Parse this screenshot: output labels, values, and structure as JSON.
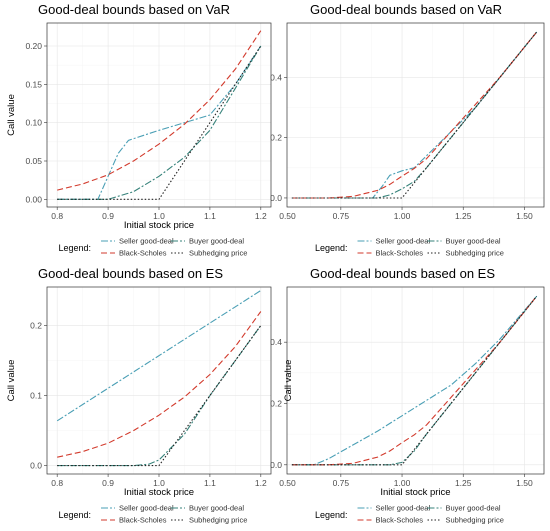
{
  "chart_data": [
    {
      "type": "line",
      "title": "Good-deal bounds based on VaR",
      "xlabel": "Initial stock price",
      "ylabel": "Call value",
      "xlim": [
        0.78,
        1.22
      ],
      "ylim": [
        -0.01,
        0.23
      ],
      "xticks": [
        0.8,
        0.9,
        1.0,
        1.1,
        1.2
      ],
      "xtick_labels": [
        "0.8",
        "0.9",
        "1.0",
        "1.1",
        "1.2"
      ],
      "yticks": [
        0,
        0.05,
        0.1,
        0.15,
        0.2
      ],
      "ytick_labels": [
        "0.00",
        "0.05",
        "0.10",
        "0.15",
        "0.20"
      ],
      "grid": true,
      "legend_placement": "bottom",
      "legend_title": "Legend:",
      "series": [
        {
          "name": "Seller good-deal",
          "color": "#4a9fb5",
          "dash": "7,2,2,2",
          "x": [
            0.8,
            0.85,
            0.88,
            0.9,
            0.92,
            0.94,
            1.0,
            1.05,
            1.1,
            1.15,
            1.2
          ],
          "y": [
            0.0,
            0.0,
            0.0,
            0.03,
            0.06,
            0.077,
            0.09,
            0.1,
            0.11,
            0.15,
            0.2
          ]
        },
        {
          "name": "Buyer good-deal",
          "color": "#36827a",
          "dash": "7,2,2,2",
          "x": [
            0.8,
            0.85,
            0.9,
            0.95,
            1.0,
            1.05,
            1.1,
            1.15,
            1.2
          ],
          "y": [
            0.0,
            0.0,
            0.0,
            0.01,
            0.03,
            0.055,
            0.09,
            0.145,
            0.2
          ]
        },
        {
          "name": "Black-Scholes",
          "color": "#d23a2c",
          "dash": "6,3",
          "x": [
            0.8,
            0.85,
            0.9,
            0.95,
            1.0,
            1.05,
            1.1,
            1.15,
            1.2
          ],
          "y": [
            0.012,
            0.02,
            0.032,
            0.05,
            0.072,
            0.098,
            0.13,
            0.17,
            0.22
          ]
        },
        {
          "name": "Subhedging price",
          "color": "#222222",
          "dash": "1.5,2",
          "x": [
            0.8,
            0.9,
            1.0,
            1.1,
            1.2
          ],
          "y": [
            0.0,
            0.0,
            0.0,
            0.1,
            0.2
          ]
        }
      ]
    },
    {
      "type": "line",
      "title": "Good-deal bounds based on VaR",
      "xlabel": "",
      "ylabel": "",
      "xlim": [
        0.53,
        1.58
      ],
      "ylim": [
        -0.03,
        0.58
      ],
      "xticks": [
        0.5,
        0.75,
        1.0,
        1.25,
        1.5
      ],
      "xtick_labels": [
        "0.50",
        "0.75",
        "1.00",
        "1.25",
        "1.50"
      ],
      "yticks": [
        0,
        0.2,
        0.4
      ],
      "ytick_labels": [
        "0.0",
        "0.2",
        "0.4"
      ],
      "grid": true,
      "legend_placement": "bottom",
      "legend_title": "Legend:",
      "series": [
        {
          "name": "Seller good-deal",
          "color": "#4a9fb5",
          "dash": "7,2,2,2",
          "x": [
            0.55,
            0.88,
            0.92,
            0.95,
            1.0,
            1.05,
            1.3,
            1.55
          ],
          "y": [
            0.0,
            0.0,
            0.04,
            0.075,
            0.09,
            0.1,
            0.3,
            0.55
          ]
        },
        {
          "name": "Buyer good-deal",
          "color": "#36827a",
          "dash": "7,2,2,2",
          "x": [
            0.55,
            0.9,
            0.95,
            1.0,
            1.05,
            1.1,
            1.3,
            1.55
          ],
          "y": [
            0.0,
            0.0,
            0.01,
            0.03,
            0.055,
            0.1,
            0.3,
            0.55
          ]
        },
        {
          "name": "Black-Scholes",
          "color": "#d23a2c",
          "dash": "6,3",
          "x": [
            0.55,
            0.7,
            0.8,
            0.9,
            0.95,
            1.0,
            1.05,
            1.1,
            1.2,
            1.3,
            1.4,
            1.55
          ],
          "y": [
            0.0,
            0.0,
            0.005,
            0.025,
            0.045,
            0.072,
            0.098,
            0.13,
            0.22,
            0.31,
            0.4,
            0.55
          ]
        },
        {
          "name": "Subhedging price",
          "color": "#222222",
          "dash": "1.5,2",
          "x": [
            0.55,
            1.0,
            1.55
          ],
          "y": [
            0.0,
            0.0,
            0.55
          ]
        }
      ]
    },
    {
      "type": "line",
      "title": "Good-deal bounds based on ES",
      "xlabel": "Initial stock price",
      "ylabel": "Call value",
      "xlim": [
        0.78,
        1.22
      ],
      "ylim": [
        -0.012,
        0.255
      ],
      "xticks": [
        0.8,
        0.9,
        1.0,
        1.1,
        1.2
      ],
      "xtick_labels": [
        "0.8",
        "0.9",
        "1.0",
        "1.1",
        "1.2"
      ],
      "yticks": [
        0,
        0.1,
        0.2
      ],
      "ytick_labels": [
        "0.0",
        "0.1",
        "0.2"
      ],
      "grid": true,
      "legend_placement": "bottom",
      "legend_title": "Legend:",
      "series": [
        {
          "name": "Seller good-deal",
          "color": "#4a9fb5",
          "dash": "7,2,2,2",
          "x": [
            0.8,
            1.2
          ],
          "y": [
            0.064,
            0.25
          ]
        },
        {
          "name": "Buyer good-deal",
          "color": "#36827a",
          "dash": "7,2,2,2",
          "x": [
            0.8,
            0.95,
            0.98,
            1.0,
            1.05,
            1.1,
            1.15,
            1.2
          ],
          "y": [
            0.0,
            0.0,
            0.002,
            0.008,
            0.045,
            0.1,
            0.15,
            0.2
          ]
        },
        {
          "name": "Black-Scholes",
          "color": "#d23a2c",
          "dash": "6,3",
          "x": [
            0.8,
            0.85,
            0.9,
            0.95,
            1.0,
            1.05,
            1.1,
            1.15,
            1.2
          ],
          "y": [
            0.012,
            0.02,
            0.032,
            0.05,
            0.072,
            0.098,
            0.13,
            0.17,
            0.22
          ]
        },
        {
          "name": "Subhedging price",
          "color": "#222222",
          "dash": "1.5,2",
          "x": [
            0.8,
            1.0,
            1.2
          ],
          "y": [
            0.0,
            0.0,
            0.2
          ]
        }
      ]
    },
    {
      "type": "line",
      "title": "Good-deal bounds based on ES",
      "xlabel": "Initial stock price",
      "ylabel": "Call value",
      "xlim": [
        0.53,
        1.58
      ],
      "ylim": [
        -0.03,
        0.58
      ],
      "xticks": [
        0.5,
        0.75,
        1.0,
        1.25,
        1.5
      ],
      "xtick_labels": [
        "0.50",
        "0.75",
        "1.00",
        "1.25",
        "1.50"
      ],
      "yticks": [
        0,
        0.2,
        0.4
      ],
      "ytick_labels": [
        "0.0",
        "0.2",
        "0.4"
      ],
      "grid": true,
      "legend_placement": "bottom",
      "legend_title": "Legend:",
      "series": [
        {
          "name": "Seller good-deal",
          "color": "#4a9fb5",
          "dash": "7,2,2,2",
          "x": [
            0.55,
            0.64,
            0.7,
            0.8,
            0.9,
            1.0,
            1.1,
            1.2,
            1.3,
            1.4,
            1.55
          ],
          "y": [
            0.0,
            0.0,
            0.02,
            0.065,
            0.11,
            0.16,
            0.21,
            0.26,
            0.33,
            0.41,
            0.55
          ]
        },
        {
          "name": "Buyer good-deal",
          "color": "#36827a",
          "dash": "7,2,2,2",
          "x": [
            0.55,
            0.95,
            1.0,
            1.05,
            1.1,
            1.3,
            1.55
          ],
          "y": [
            0.0,
            0.0,
            0.008,
            0.045,
            0.1,
            0.3,
            0.55
          ]
        },
        {
          "name": "Black-Scholes",
          "color": "#d23a2c",
          "dash": "6,3",
          "x": [
            0.55,
            0.7,
            0.8,
            0.9,
            0.95,
            1.0,
            1.05,
            1.1,
            1.2,
            1.3,
            1.4,
            1.55
          ],
          "y": [
            0.0,
            0.0,
            0.005,
            0.025,
            0.045,
            0.072,
            0.098,
            0.13,
            0.22,
            0.31,
            0.4,
            0.55
          ]
        },
        {
          "name": "Subhedging price",
          "color": "#222222",
          "dash": "1.5,2",
          "x": [
            0.55,
            1.0,
            1.55
          ],
          "y": [
            0.0,
            0.0,
            0.55
          ]
        }
      ]
    }
  ]
}
